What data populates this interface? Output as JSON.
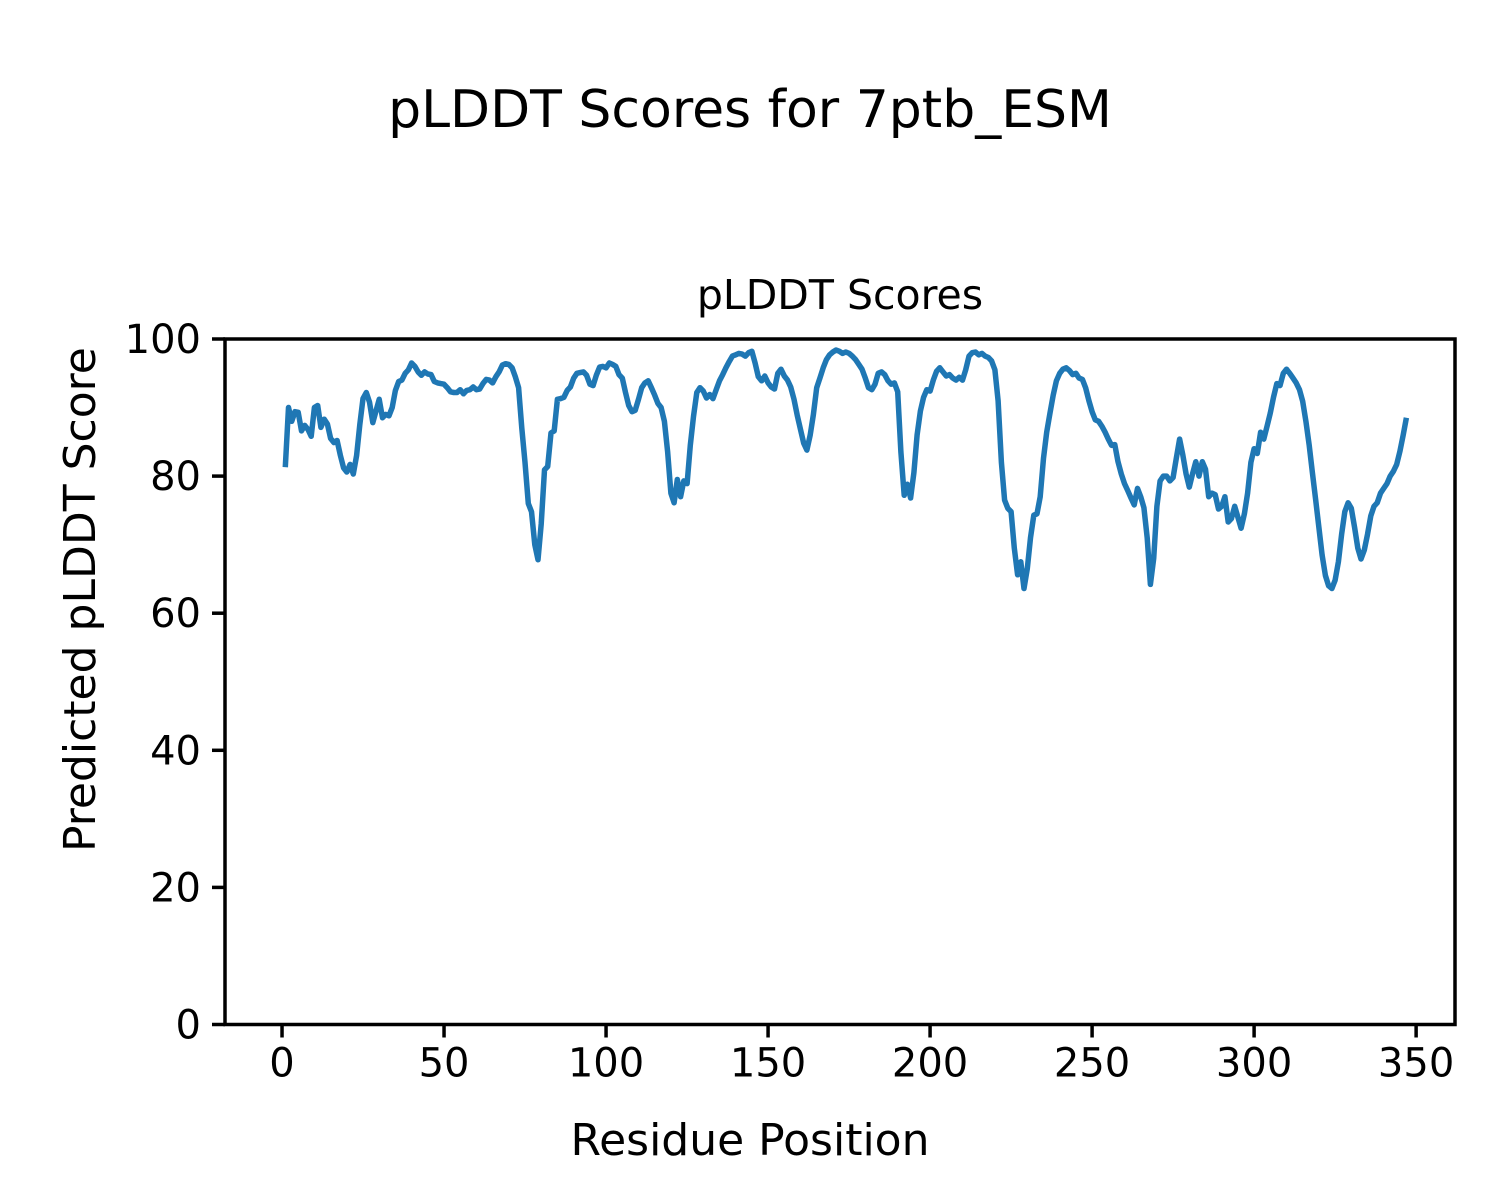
{
  "figure": {
    "suptitle": "pLDDT Scores for 7ptb_ESM",
    "background": "#ffffff"
  },
  "chart_data": {
    "type": "line",
    "title": "pLDDT Scores",
    "xlabel": "Residue Position",
    "ylabel": "Predicted pLDDT Score",
    "xlim": [
      -17.6,
      362
    ],
    "ylim": [
      0,
      100
    ],
    "xticks": [
      0,
      50,
      100,
      150,
      200,
      250,
      300,
      350
    ],
    "yticks": [
      0,
      20,
      40,
      60,
      80,
      100
    ],
    "grid": false,
    "legend_position": "none",
    "line_color": "#1f77b4",
    "axis_color": "#000000",
    "series": [
      {
        "name": "pLDDT",
        "x_start": 1,
        "x_step": 1,
        "values": [
          81.3,
          90,
          88,
          89.4,
          89.3,
          86.6,
          87.4,
          86.8,
          85.8,
          90,
          90.3,
          87.1,
          88.3,
          87.6,
          85.5,
          84.9,
          85.2,
          83,
          81.2,
          80.6,
          81.7,
          80.3,
          83,
          87.5,
          91.3,
          92.2,
          90.8,
          87.8,
          89.5,
          91.2,
          88.5,
          89,
          88.8,
          90,
          92.5,
          93.8,
          94,
          95,
          95.5,
          96.5,
          96,
          95.2,
          94.7,
          95.2,
          94.9,
          94.8,
          93.8,
          93.6,
          93.5,
          93.4,
          92.9,
          92.3,
          92.2,
          92.2,
          92.6,
          92,
          92.5,
          92.6,
          93,
          92.6,
          92.7,
          93.5,
          94.1,
          94,
          93.6,
          94.5,
          95.2,
          96.2,
          96.4,
          96.3,
          95.8,
          94.5,
          92.9,
          87,
          82,
          76,
          74.8,
          70,
          67.8,
          73,
          80.9,
          81.4,
          86.3,
          86.6,
          91.2,
          91.3,
          91.5,
          92.5,
          93,
          94.3,
          95,
          95.1,
          95.2,
          94.7,
          93.4,
          93.2,
          94.7,
          95.9,
          96,
          95.8,
          96.5,
          96.3,
          96,
          94.8,
          94.3,
          92.2,
          90.3,
          89.4,
          89.6,
          91.2,
          92.9,
          93.6,
          93.9,
          92.9,
          91.8,
          90.6,
          90,
          88,
          83.6,
          77.5,
          76.1,
          79.5,
          77,
          79.3,
          78.9,
          84.5,
          88.7,
          92.2,
          92.9,
          92.4,
          91.4,
          91.9,
          91.3,
          92.6,
          93.9,
          94.8,
          95.8,
          96.7,
          97.5,
          97.7,
          97.9,
          97.8,
          97.5,
          98,
          98.2,
          96.5,
          94.5,
          93.9,
          94.6,
          93.6,
          93,
          92.7,
          95,
          95.6,
          94.6,
          94,
          93,
          91.2,
          88.9,
          86.8,
          84.8,
          83.8,
          86,
          89,
          92.9,
          94.3,
          95.8,
          97,
          97.7,
          98.1,
          98.4,
          98.2,
          97.9,
          98.1,
          97.9,
          97.5,
          97,
          96.3,
          95.6,
          94.3,
          92.9,
          92.6,
          93.4,
          95,
          95.2,
          94.8,
          93.9,
          93.4,
          93.6,
          92.3,
          83.5,
          77.2,
          78.8,
          76.8,
          80.5,
          86,
          89.5,
          91.5,
          92.6,
          92.4,
          94,
          95.3,
          95.8,
          95.2,
          94.6,
          94.8,
          94.3,
          94,
          94.4,
          94,
          95.5,
          97.5,
          98,
          98.1,
          97.7,
          97.9,
          97.5,
          97.3,
          96.8,
          95.5,
          91,
          82,
          76.5,
          75.3,
          74.8,
          69.5,
          65.6,
          67.5,
          63.6,
          66.5,
          71,
          74.3,
          74.5,
          77,
          82.6,
          86.4,
          89.2,
          91.8,
          93.9,
          95,
          95.6,
          95.8,
          95.4,
          94.8,
          95,
          94.3,
          94.1,
          92.9,
          91,
          89.4,
          88.2,
          88,
          87.3,
          86.4,
          85.4,
          84.5,
          84.6,
          82.1,
          80.3,
          78.9,
          77.9,
          76.8,
          75.8,
          78.2,
          77,
          75.4,
          71,
          64.2,
          68,
          75.6,
          79.3,
          80,
          80,
          79.3,
          79.8,
          82.6,
          85.4,
          83.1,
          80.3,
          78.4,
          80.3,
          82.1,
          80,
          82.1,
          81,
          77,
          77.5,
          77.3,
          75.2,
          75.6,
          77,
          73.3,
          73.8,
          75.6,
          74,
          72.4,
          74.5,
          77.5,
          82,
          84,
          83.3,
          86.4,
          85.4,
          87.3,
          89.2,
          91.5,
          93.5,
          93.2,
          95,
          95.6,
          95,
          94.3,
          93.6,
          92.6,
          90.9,
          88,
          84.5,
          80.5,
          76.5,
          72.5,
          68.5,
          65.5,
          64,
          63.6,
          64.8,
          67.5,
          71.5,
          74.8,
          76.1,
          75.3,
          72.5,
          69.5,
          67.9,
          69.2,
          71.5,
          74.2,
          75.6,
          76.1,
          77.5,
          78.2,
          78.9,
          80,
          80.7,
          81.7,
          83.6,
          86,
          88.5
        ]
      }
    ]
  }
}
